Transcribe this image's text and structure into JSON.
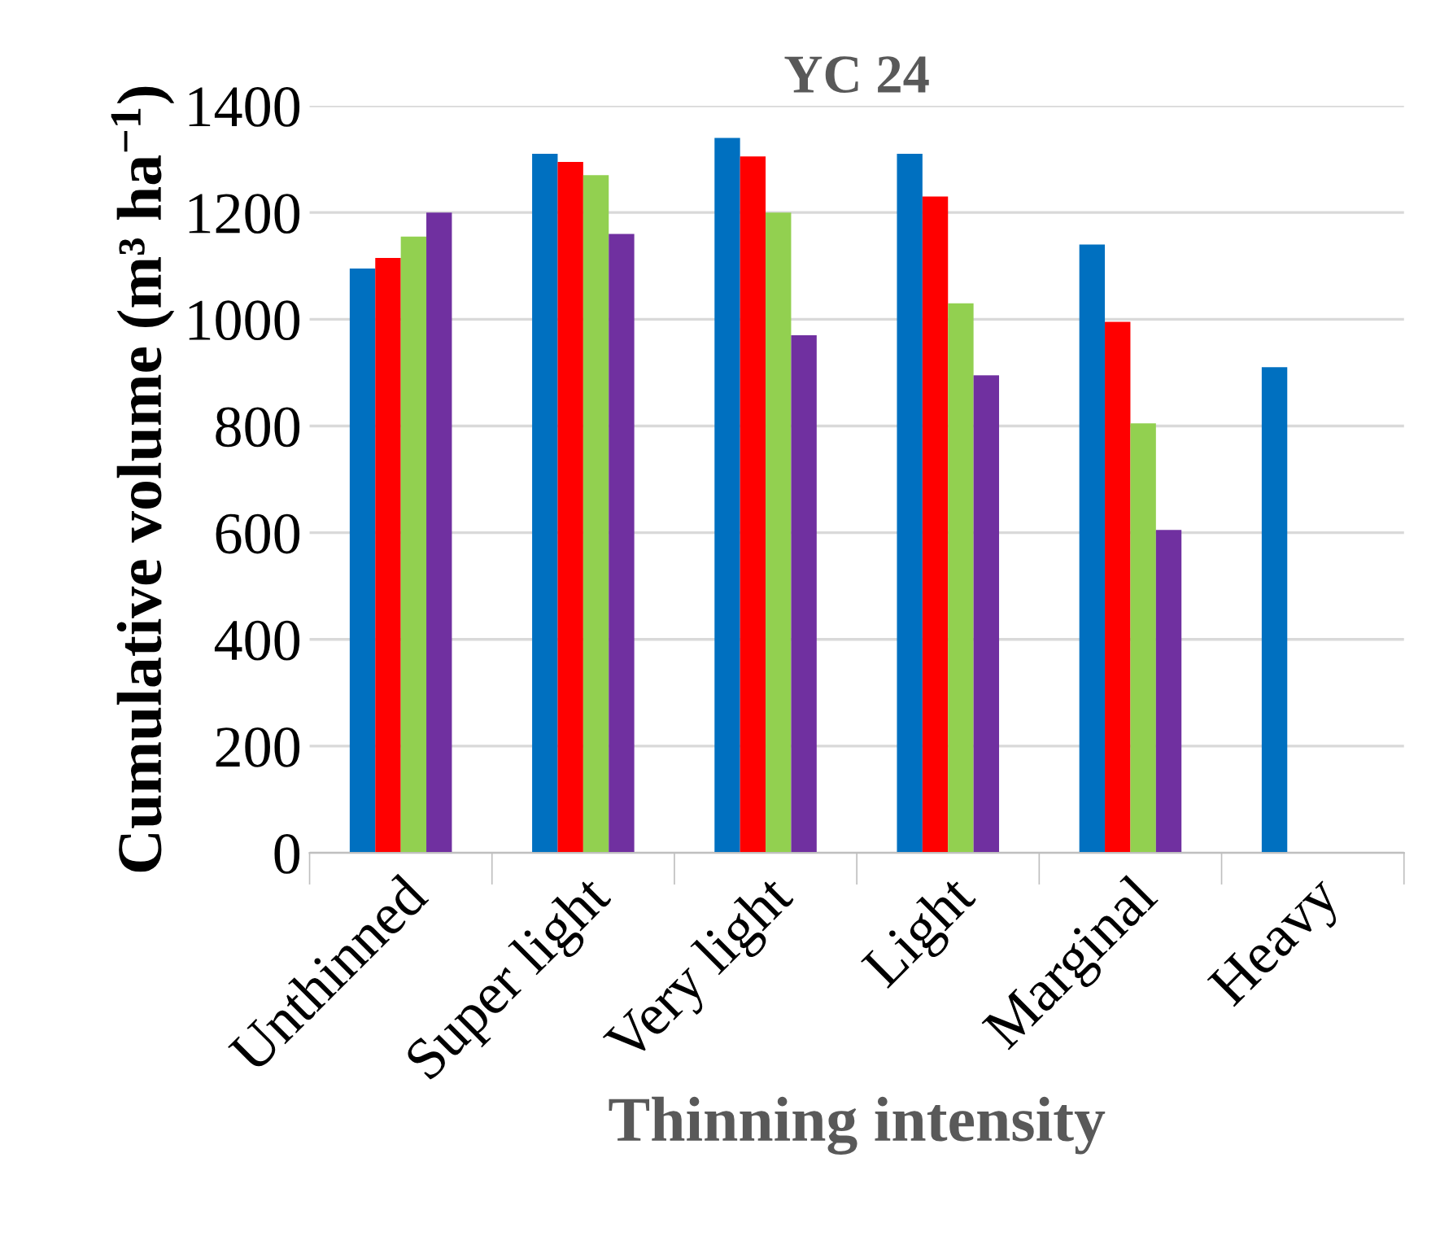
{
  "chart_data": {
    "type": "bar",
    "title": "YC 24",
    "xlabel": "Thinning intensity",
    "ylabel": "Cumulative volume (m³ ha$^{−1}$)",
    "categories": [
      "Unthinned",
      "Super light",
      "Very light",
      "Light",
      "Marginal",
      "Heavy"
    ],
    "series": [
      {
        "color": "#0070c0",
        "values": [
          1095,
          1310,
          1340,
          1310,
          1140,
          910
        ]
      },
      {
        "color": "#ff0000",
        "values": [
          1115,
          1295,
          1305,
          1230,
          995,
          null
        ]
      },
      {
        "color": "#92d050",
        "values": [
          1155,
          1270,
          1200,
          1030,
          805,
          null
        ]
      },
      {
        "color": "#7030a0",
        "values": [
          1200,
          1160,
          970,
          895,
          605,
          null
        ]
      }
    ],
    "ylim": [
      0,
      1400
    ],
    "yticks": [
      0,
      200,
      400,
      600,
      800,
      1000,
      1200,
      1400
    ],
    "grid": "y",
    "legend": false
  }
}
